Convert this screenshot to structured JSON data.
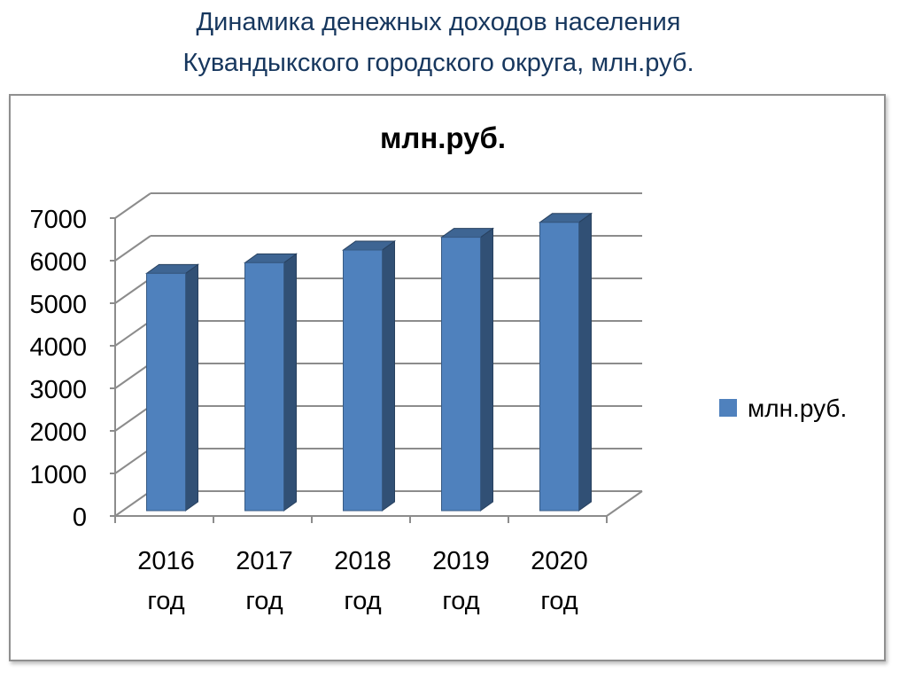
{
  "slide": {
    "title_line1": "Динамика денежных доходов населения",
    "title_line2": "Кувандыкского городского округа, млн.руб."
  },
  "chart_data": {
    "type": "bar",
    "title": "млн.руб.",
    "categories": [
      [
        "2016",
        "год"
      ],
      [
        "2017",
        "год"
      ],
      [
        "2018",
        "год"
      ],
      [
        "2019",
        "год"
      ],
      [
        "2020",
        "год"
      ]
    ],
    "series": [
      {
        "name": "млн.руб.",
        "values": [
          5700,
          5950,
          6250,
          6550,
          6900
        ],
        "color": "#4f81bd"
      }
    ],
    "ylim": [
      0,
      7000
    ],
    "yticks": [
      0,
      1000,
      2000,
      3000,
      4000,
      5000,
      6000,
      7000
    ],
    "xlabel": "",
    "ylabel": "",
    "grid": true,
    "legend": "right",
    "style": "3d-column"
  }
}
